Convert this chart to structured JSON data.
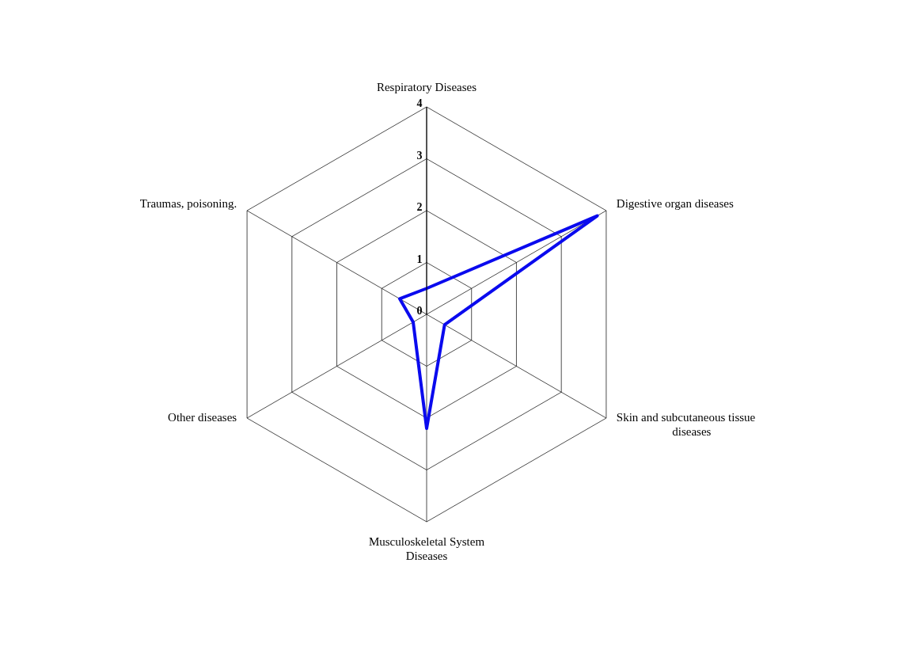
{
  "chart_data": {
    "type": "radar",
    "categories": [
      "Respiratory Diseases",
      "Digestive organ diseases",
      "Skin and subcutaneous tissue diseases",
      "Musculoskeletal System Diseases",
      "Other diseases",
      "Traumas, poisoning."
    ],
    "series": [
      {
        "color": "#0a0aee",
        "values": [
          0.5,
          3.8,
          0.4,
          2.2,
          0.3,
          0.6
        ]
      }
    ],
    "ylim": [
      0,
      4
    ],
    "yticks": [
      0,
      1,
      2,
      3,
      4
    ],
    "grid": true,
    "legend": false,
    "marker": "none",
    "line_style": "solid"
  }
}
